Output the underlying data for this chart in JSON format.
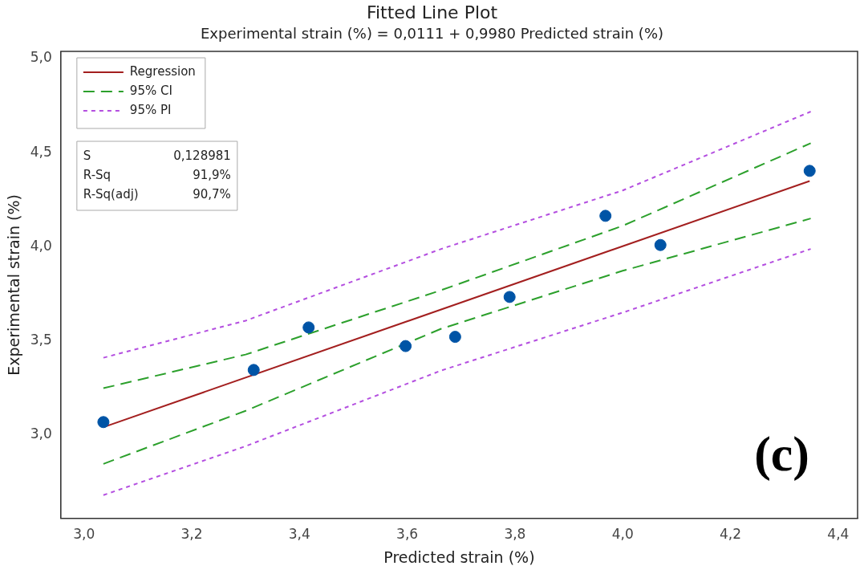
{
  "chart_data": {
    "type": "scatter",
    "title": "Fitted Line Plot",
    "subtitle": "Experimental strain (%) = 0,0111 + 0,9980 Predicted strain (%)",
    "xlabel": "Predicted strain (%)",
    "ylabel": "Experimental strain (%)",
    "xlim": [
      2.957,
      4.436
    ],
    "xticks": [
      {
        "value": 3.0,
        "label": "3,0"
      },
      {
        "value": 3.2,
        "label": "3,2"
      },
      {
        "value": 3.4,
        "label": "3,4"
      },
      {
        "value": 3.6,
        "label": "3,6"
      },
      {
        "value": 3.8,
        "label": "3,8"
      },
      {
        "value": 4.0,
        "label": "4,0"
      },
      {
        "value": 4.2,
        "label": "4,2"
      },
      {
        "value": 4.4,
        "label": "4,4"
      }
    ],
    "ylim": [
      2.556,
      5.038
    ],
    "yticks": [
      {
        "value": 3.0,
        "label": "3,0"
      },
      {
        "value": 3.5,
        "label": "3,5"
      },
      {
        "value": 4.0,
        "label": "4,0"
      },
      {
        "value": 4.5,
        "label": "4,5"
      },
      {
        "value": 5.0,
        "label": "5,0"
      }
    ],
    "grid": false,
    "legend": "top left",
    "marker": "circle",
    "series": [
      {
        "type": "scatter",
        "color": "#0054a6",
        "x": [
          3.036,
          3.315,
          3.417,
          3.597,
          3.689,
          3.79,
          3.968,
          4.07,
          4.347
        ],
        "values": [
          3.068,
          3.345,
          3.571,
          3.472,
          3.521,
          3.733,
          4.164,
          4.009,
          4.403
        ]
      },
      {
        "type": "line",
        "name": "Regression",
        "color": "#a31f1f",
        "line_style": "solid",
        "marker": "none",
        "x": [
          3.036,
          4.347
        ],
        "values": [
          3.041,
          4.349
        ]
      },
      {
        "type": "line",
        "name": "95% CI",
        "color": "#2ca02c",
        "line_style": "dashed",
        "marker": "none",
        "x": [
          3.036,
          3.3,
          3.663,
          4.0,
          4.349
        ],
        "values": [
          3.248,
          3.427,
          3.769,
          4.111,
          4.55
        ]
      },
      {
        "type": "line",
        "color": "#2ca02c",
        "line_style": "dashed",
        "marker": "none",
        "x": [
          3.036,
          3.3,
          3.663,
          4.0,
          4.349
        ],
        "values": [
          2.846,
          3.128,
          3.564,
          3.872,
          4.15
        ]
      },
      {
        "type": "line",
        "name": "95% PI",
        "color": "#b44fe0",
        "line_style": "dotted",
        "marker": "none",
        "x": [
          3.036,
          3.3,
          3.663,
          4.0,
          4.349
        ],
        "values": [
          3.41,
          3.607,
          3.988,
          4.299,
          4.718
        ]
      },
      {
        "type": "line",
        "color": "#b44fe0",
        "line_style": "dotted",
        "marker": "none",
        "x": [
          3.036,
          3.3,
          3.663,
          4.0,
          4.349
        ],
        "values": [
          2.68,
          2.94,
          3.342,
          3.65,
          3.988
        ]
      }
    ],
    "annotations": [
      "S\t0,128981",
      "R-Sq\t91,9%",
      "R-Sq(adj)\t90,7%",
      "(c)"
    ]
  }
}
